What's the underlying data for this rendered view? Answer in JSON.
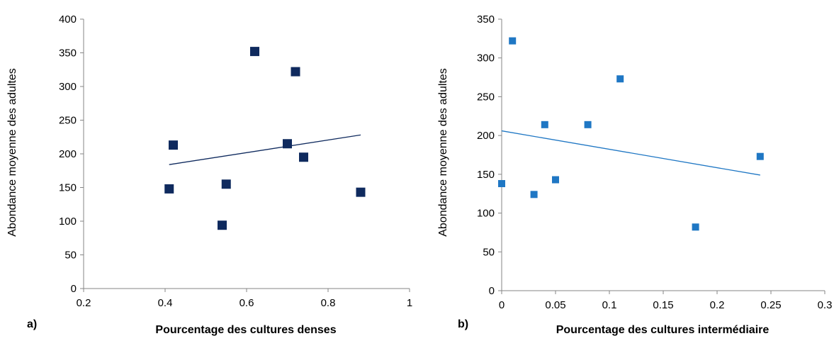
{
  "chart_data": [
    {
      "type": "scatter",
      "panel_label": "a)",
      "xlabel": "Pourcentage des cultures denses",
      "ylabel": "Abondance moyenne des adultes",
      "xlim": [
        0.2,
        1
      ],
      "ylim": [
        0,
        400
      ],
      "xticks": [
        "0.2",
        "0.4",
        "0.6",
        "0.8",
        "1"
      ],
      "yticks": [
        "0",
        "50",
        "100",
        "150",
        "200",
        "250",
        "300",
        "350",
        "400"
      ],
      "marker_color": "#0f2a5e",
      "trendline_color": "#0f2a5e",
      "points": [
        {
          "x": 0.41,
          "y": 148
        },
        {
          "x": 0.42,
          "y": 213
        },
        {
          "x": 0.54,
          "y": 94
        },
        {
          "x": 0.55,
          "y": 155
        },
        {
          "x": 0.62,
          "y": 352
        },
        {
          "x": 0.7,
          "y": 215
        },
        {
          "x": 0.72,
          "y": 322
        },
        {
          "x": 0.74,
          "y": 195
        },
        {
          "x": 0.88,
          "y": 143
        }
      ],
      "trendline": [
        {
          "x": 0.41,
          "y": 184
        },
        {
          "x": 0.88,
          "y": 228
        }
      ],
      "grid": false
    },
    {
      "type": "scatter",
      "panel_label": "b)",
      "xlabel": "Pourcentage des cultures intermédiaire",
      "ylabel": "Abondance moyenne des adultes",
      "xlim": [
        0,
        0.3
      ],
      "ylim": [
        0,
        350
      ],
      "xticks": [
        "0",
        "0.05",
        "0.1",
        "0.15",
        "0.2",
        "0.25",
        "0.3"
      ],
      "yticks": [
        "0",
        "50",
        "100",
        "150",
        "200",
        "250",
        "300",
        "350"
      ],
      "marker_color": "#1f77c4",
      "trendline_color": "#1f77c4",
      "points": [
        {
          "x": 0.0,
          "y": 138
        },
        {
          "x": 0.01,
          "y": 322
        },
        {
          "x": 0.03,
          "y": 124
        },
        {
          "x": 0.04,
          "y": 214
        },
        {
          "x": 0.05,
          "y": 143
        },
        {
          "x": 0.08,
          "y": 214
        },
        {
          "x": 0.11,
          "y": 273
        },
        {
          "x": 0.18,
          "y": 82
        },
        {
          "x": 0.24,
          "y": 173
        }
      ],
      "trendline": [
        {
          "x": 0.0,
          "y": 206
        },
        {
          "x": 0.24,
          "y": 149
        }
      ],
      "grid": false
    }
  ]
}
